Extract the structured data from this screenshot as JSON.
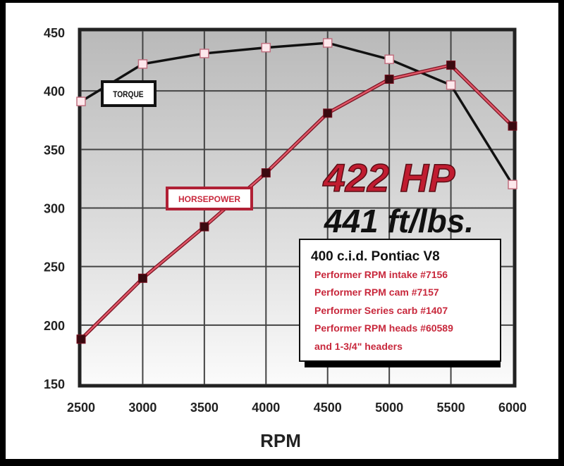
{
  "chart_data": {
    "type": "line",
    "xlabel": "RPM",
    "ylabel": "",
    "x": [
      2500,
      3000,
      3500,
      4000,
      4500,
      5000,
      5500,
      6000
    ],
    "xlim": [
      2500,
      6000
    ],
    "ylim": [
      150,
      450
    ],
    "xticks": [
      "2500",
      "3000",
      "3500",
      "4000",
      "4500",
      "5000",
      "5500",
      "6000"
    ],
    "yticks": [
      "150",
      "200",
      "250",
      "300",
      "350",
      "400",
      "450"
    ],
    "grid": true,
    "series": [
      {
        "name": "TORQUE",
        "color": "#111111",
        "marker": "open-square",
        "values": [
          391,
          423,
          432,
          437,
          441,
          427,
          405,
          320
        ]
      },
      {
        "name": "HORSEPOWER",
        "color": "#c8283c",
        "marker": "filled-square",
        "values": [
          188,
          240,
          284,
          330,
          381,
          410,
          422,
          370
        ]
      }
    ],
    "annotations": {
      "hp_headline": "422 HP",
      "torque_headline": "441 ft/lbs.",
      "spec_title": "400 c.i.d. Pontiac V8",
      "spec_lines": [
        "Performer RPM intake #7156",
        "Performer RPM cam #7157",
        "Performer Series carb #1407",
        "Performer RPM heads #60589",
        "and 1-3/4\" headers"
      ]
    }
  }
}
